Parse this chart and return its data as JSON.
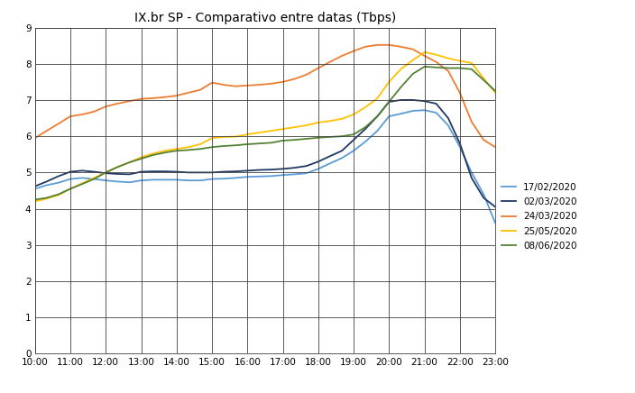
{
  "title": "IX.br SP - Comparativo entre datas (Tbps)",
  "xlim": [
    10.0,
    23.0
  ],
  "ylim": [
    0,
    9
  ],
  "yticks": [
    0,
    1,
    2,
    3,
    4,
    5,
    6,
    7,
    8,
    9
  ],
  "xticks": [
    10,
    11,
    12,
    13,
    14,
    15,
    16,
    17,
    18,
    19,
    20,
    21,
    22,
    23
  ],
  "xtick_labels": [
    "10:00",
    "11:00",
    "12:00",
    "13:00",
    "14:00",
    "15:00",
    "16:00",
    "17:00",
    "18:00",
    "19:00",
    "20:00",
    "21:00",
    "22:00",
    "23:00"
  ],
  "series": [
    {
      "label": "17/02/2020",
      "color": "#5B9BD5",
      "x": [
        10.0,
        10.33,
        10.67,
        11.0,
        11.33,
        11.67,
        12.0,
        12.33,
        12.67,
        13.0,
        13.33,
        13.67,
        14.0,
        14.33,
        14.67,
        15.0,
        15.33,
        15.67,
        16.0,
        16.33,
        16.67,
        17.0,
        17.33,
        17.67,
        18.0,
        18.33,
        18.67,
        19.0,
        19.33,
        19.67,
        20.0,
        20.33,
        20.67,
        21.0,
        21.33,
        21.67,
        22.0,
        22.33,
        22.67,
        23.0
      ],
      "y": [
        4.55,
        4.65,
        4.72,
        4.82,
        4.85,
        4.82,
        4.78,
        4.75,
        4.73,
        4.78,
        4.8,
        4.8,
        4.8,
        4.78,
        4.78,
        4.82,
        4.83,
        4.85,
        4.88,
        4.89,
        4.9,
        4.93,
        4.95,
        4.98,
        5.1,
        5.25,
        5.4,
        5.6,
        5.85,
        6.15,
        6.55,
        6.62,
        6.7,
        6.72,
        6.65,
        6.3,
        5.7,
        5.0,
        4.4,
        3.6
      ]
    },
    {
      "label": "02/03/2020",
      "color": "#203864",
      "x": [
        10.0,
        10.33,
        10.67,
        11.0,
        11.33,
        11.67,
        12.0,
        12.33,
        12.67,
        13.0,
        13.33,
        13.67,
        14.0,
        14.33,
        14.67,
        15.0,
        15.33,
        15.67,
        16.0,
        16.33,
        16.67,
        17.0,
        17.33,
        17.67,
        18.0,
        18.33,
        18.67,
        19.0,
        19.33,
        19.67,
        20.0,
        20.33,
        20.67,
        21.0,
        21.33,
        21.67,
        22.0,
        22.33,
        22.67,
        23.0
      ],
      "y": [
        4.62,
        4.75,
        4.9,
        5.02,
        5.05,
        5.02,
        4.98,
        4.96,
        4.95,
        5.02,
        5.03,
        5.03,
        5.02,
        5.0,
        5.0,
        5.0,
        5.02,
        5.03,
        5.05,
        5.07,
        5.08,
        5.1,
        5.13,
        5.18,
        5.3,
        5.45,
        5.6,
        5.9,
        6.2,
        6.55,
        6.95,
        7.0,
        7.0,
        6.97,
        6.9,
        6.5,
        5.8,
        4.85,
        4.3,
        4.05
      ]
    },
    {
      "label": "24/03/2020",
      "color": "#ED7D31",
      "x": [
        10.0,
        10.33,
        10.67,
        11.0,
        11.33,
        11.67,
        12.0,
        12.33,
        12.67,
        13.0,
        13.33,
        13.67,
        14.0,
        14.33,
        14.67,
        15.0,
        15.33,
        15.67,
        16.0,
        16.33,
        16.67,
        17.0,
        17.33,
        17.67,
        18.0,
        18.33,
        18.67,
        19.0,
        19.33,
        19.67,
        20.0,
        20.33,
        20.67,
        21.0,
        21.33,
        21.67,
        22.0,
        22.33,
        22.67,
        23.0
      ],
      "y": [
        5.95,
        6.15,
        6.35,
        6.55,
        6.6,
        6.68,
        6.82,
        6.9,
        6.97,
        7.03,
        7.05,
        7.08,
        7.12,
        7.2,
        7.28,
        7.48,
        7.42,
        7.38,
        7.4,
        7.42,
        7.45,
        7.5,
        7.58,
        7.7,
        7.88,
        8.05,
        8.22,
        8.35,
        8.47,
        8.52,
        8.52,
        8.47,
        8.4,
        8.22,
        8.05,
        7.8,
        7.2,
        6.4,
        5.9,
        5.7
      ]
    },
    {
      "label": "25/05/2020",
      "color": "#FFC000",
      "x": [
        10.0,
        10.33,
        10.67,
        11.0,
        11.33,
        11.67,
        12.0,
        12.33,
        12.67,
        13.0,
        13.33,
        13.67,
        14.0,
        14.33,
        14.67,
        15.0,
        15.33,
        15.67,
        16.0,
        16.33,
        16.67,
        17.0,
        17.33,
        17.67,
        18.0,
        18.33,
        18.67,
        19.0,
        19.33,
        19.67,
        20.0,
        20.33,
        20.67,
        21.0,
        21.33,
        21.67,
        22.0,
        22.33,
        22.67,
        23.0
      ],
      "y": [
        4.2,
        4.28,
        4.38,
        4.55,
        4.7,
        4.85,
        5.0,
        5.15,
        5.28,
        5.42,
        5.52,
        5.6,
        5.65,
        5.7,
        5.78,
        5.95,
        5.98,
        5.99,
        6.05,
        6.1,
        6.15,
        6.2,
        6.25,
        6.3,
        6.38,
        6.42,
        6.48,
        6.6,
        6.8,
        7.05,
        7.5,
        7.85,
        8.1,
        8.32,
        8.25,
        8.15,
        8.08,
        8.02,
        7.6,
        7.2
      ]
    },
    {
      "label": "08/06/2020",
      "color": "#548235",
      "x": [
        10.0,
        10.33,
        10.67,
        11.0,
        11.33,
        11.67,
        12.0,
        12.33,
        12.67,
        13.0,
        13.33,
        13.67,
        14.0,
        14.33,
        14.67,
        15.0,
        15.33,
        15.67,
        16.0,
        16.33,
        16.67,
        17.0,
        17.33,
        17.67,
        18.0,
        18.33,
        18.67,
        19.0,
        19.33,
        19.67,
        20.0,
        20.33,
        20.67,
        21.0,
        21.33,
        21.67,
        22.0,
        22.33,
        22.67,
        23.0
      ],
      "y": [
        4.25,
        4.3,
        4.4,
        4.55,
        4.68,
        4.82,
        5.0,
        5.15,
        5.28,
        5.38,
        5.48,
        5.55,
        5.6,
        5.62,
        5.65,
        5.7,
        5.73,
        5.75,
        5.78,
        5.8,
        5.82,
        5.88,
        5.9,
        5.93,
        5.96,
        5.98,
        6.0,
        6.05,
        6.25,
        6.55,
        6.95,
        7.35,
        7.72,
        7.92,
        7.9,
        7.88,
        7.88,
        7.85,
        7.55,
        7.25
      ]
    }
  ],
  "background_color": "#FFFFFF",
  "grid_color": "#404040",
  "title_fontsize": 10,
  "legend_fontsize": 7.5,
  "tick_fontsize": 7.5,
  "linewidth": 1.3
}
